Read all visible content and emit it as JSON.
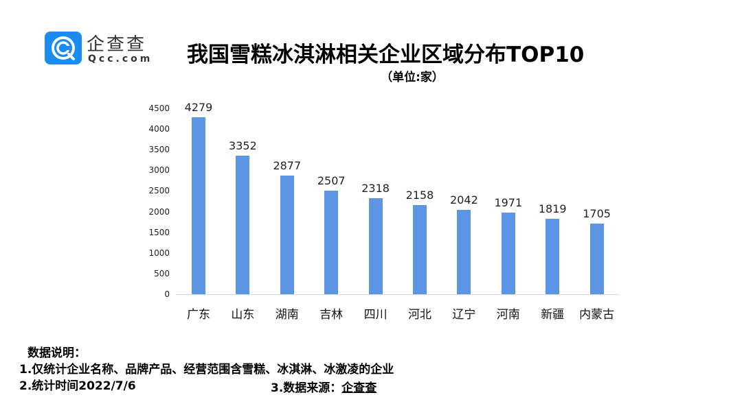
{
  "brand": {
    "name_cn": "企查查",
    "name_en": "Qcc.com",
    "color": "#1a8cf0"
  },
  "header": {
    "title": "我国雪糕冰淇淋相关企业区域分布TOP10",
    "subtitle": "（单位:家）"
  },
  "chart_data": {
    "type": "bar",
    "title": "我国雪糕冰淇淋相关企业区域分布TOP10",
    "subtitle": "（单位:家）",
    "xlabel": "",
    "ylabel": "",
    "categories": [
      "广东",
      "山东",
      "湖南",
      "吉林",
      "四川",
      "河北",
      "辽宁",
      "河南",
      "新疆",
      "内蒙古"
    ],
    "values": [
      4279,
      3352,
      2877,
      2507,
      2318,
      2158,
      2042,
      1971,
      1819,
      1705
    ],
    "ylim": [
      0,
      4500
    ],
    "yticks": [
      "0",
      "500",
      "1000",
      "1500",
      "2000",
      "2500",
      "3000",
      "3500",
      "4000",
      "4500"
    ],
    "grid": false,
    "legend": "none",
    "bar_color": "#5b95e3"
  },
  "notes": {
    "heading": "数据说明：",
    "line1": "1.仅统计企业名称、品牌产品、经营范围含雪糕、冰淇淋、冰激凌的企业",
    "line2": "2.统计时间2022/7/6",
    "line3_prefix": "3.数据来源：",
    "line3_source": "企查查"
  }
}
